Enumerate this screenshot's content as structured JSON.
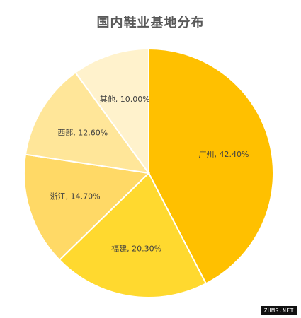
{
  "chart_data": {
    "type": "pie",
    "title": "国内鞋业基地分布",
    "slices": [
      {
        "label": "广州",
        "value": 42.4,
        "display": "广州, 42.40%",
        "color": "#FFC000"
      },
      {
        "label": "福建",
        "value": 20.3,
        "display": "福建, 20.30%",
        "color": "#FFD92F"
      },
      {
        "label": "浙江",
        "value": 14.7,
        "display": "浙江, 14.70%",
        "color": "#FFD966"
      },
      {
        "label": "西部",
        "value": 12.6,
        "display": "西部, 12.60%",
        "color": "#FFE699"
      },
      {
        "label": "其他",
        "value": 10.0,
        "display": "其他, 10.00%",
        "color": "#FFF2CC"
      }
    ],
    "start_angle": "12 o'clock",
    "direction": "clockwise",
    "slice_border_color": "#FFFFFF"
  },
  "watermark": "ZUMS.NET"
}
